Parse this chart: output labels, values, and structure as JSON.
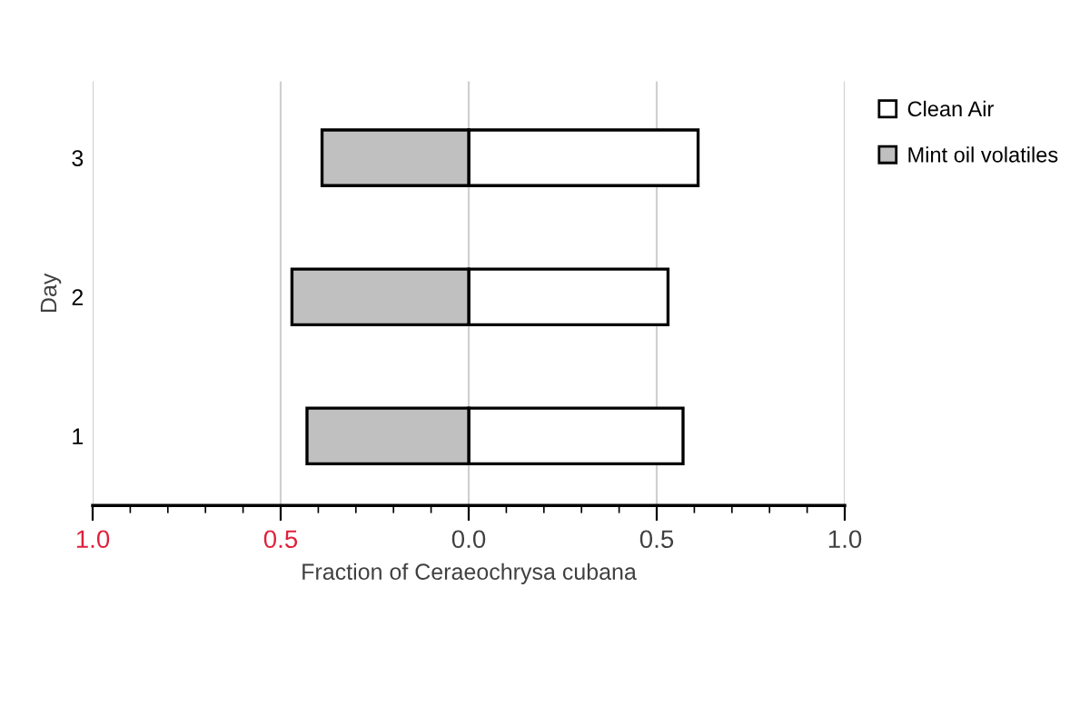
{
  "chart_data": {
    "type": "bar",
    "orientation": "horizontal",
    "stacked": true,
    "xlabel": "Fraction of Ceraeochrysa cubana",
    "ylabel": "Day",
    "categories": [
      "3",
      "2",
      "1"
    ],
    "series": [
      {
        "name": "Clean Air",
        "color": "#ffffff",
        "values": [
          0.61,
          0.53,
          0.57
        ]
      },
      {
        "name": "Mint oil volatiles",
        "color": "#c0c0c0",
        "values": [
          -0.39,
          -0.47,
          -0.43
        ]
      }
    ],
    "xlim": [
      -1,
      1
    ],
    "xticks": [
      {
        "value": -1,
        "label": "1.0"
      },
      {
        "value": -0.5,
        "label": "0.5"
      },
      {
        "value": 0,
        "label": "0.0"
      },
      {
        "value": 0.5,
        "label": "0.5"
      },
      {
        "value": 1,
        "label": "1.0"
      }
    ],
    "grid": "x",
    "legend": "top right"
  }
}
